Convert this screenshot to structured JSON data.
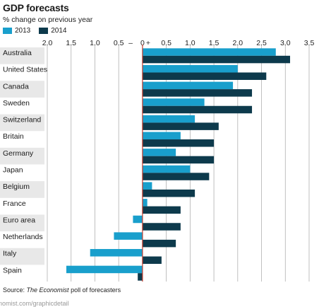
{
  "header": {
    "title": "GDP forecasts",
    "subtitle": "% change on previous year"
  },
  "source": {
    "prefix": "Source: ",
    "publication": "The Economist",
    "suffix": " poll of forecasters"
  },
  "footer_url": "nomist.com/graphicdetail",
  "colors": {
    "series_2013": "#199fcc",
    "series_2014": "#0d3a4c",
    "zero_line": "#c0392b",
    "grid": "#b0b0b0",
    "band": "#e8e8e8"
  },
  "chart_data": {
    "type": "bar",
    "orientation": "horizontal",
    "xlim": [
      -2.0,
      3.5
    ],
    "x_ticks": [
      {
        "value": -2.0,
        "label": "2.0"
      },
      {
        "value": -1.5,
        "label": "1.5"
      },
      {
        "value": -1.0,
        "label": "1.0"
      },
      {
        "value": -0.5,
        "label": "0.5"
      },
      {
        "value": 0,
        "label": "0"
      },
      {
        "value": 0.5,
        "label": "0.5"
      },
      {
        "value": 1.0,
        "label": "1.0"
      },
      {
        "value": 1.5,
        "label": "1.5"
      },
      {
        "value": 2.0,
        "label": "2.0"
      },
      {
        "value": 2.5,
        "label": "2.5"
      },
      {
        "value": 3.0,
        "label": "3.0"
      },
      {
        "value": 3.5,
        "label": "3.5"
      }
    ],
    "minus_sign": "–",
    "plus_sign": "+",
    "categories": [
      "Australia",
      "United States",
      "Canada",
      "Sweden",
      "Switzerland",
      "Britain",
      "Germany",
      "Japan",
      "Belgium",
      "France",
      "Euro area",
      "Netherlands",
      "Italy",
      "Spain"
    ],
    "series": [
      {
        "name": "2013",
        "values": [
          2.8,
          2.0,
          1.9,
          1.3,
          1.1,
          0.8,
          0.7,
          1.0,
          0.2,
          0.1,
          -0.2,
          -0.6,
          -1.1,
          -1.6
        ]
      },
      {
        "name": "2014",
        "values": [
          3.1,
          2.6,
          2.3,
          2.3,
          1.6,
          1.5,
          1.5,
          1.4,
          1.1,
          0.8,
          0.8,
          0.7,
          0.4,
          -0.1
        ]
      }
    ],
    "legend_position": "top-left",
    "grid": true
  }
}
